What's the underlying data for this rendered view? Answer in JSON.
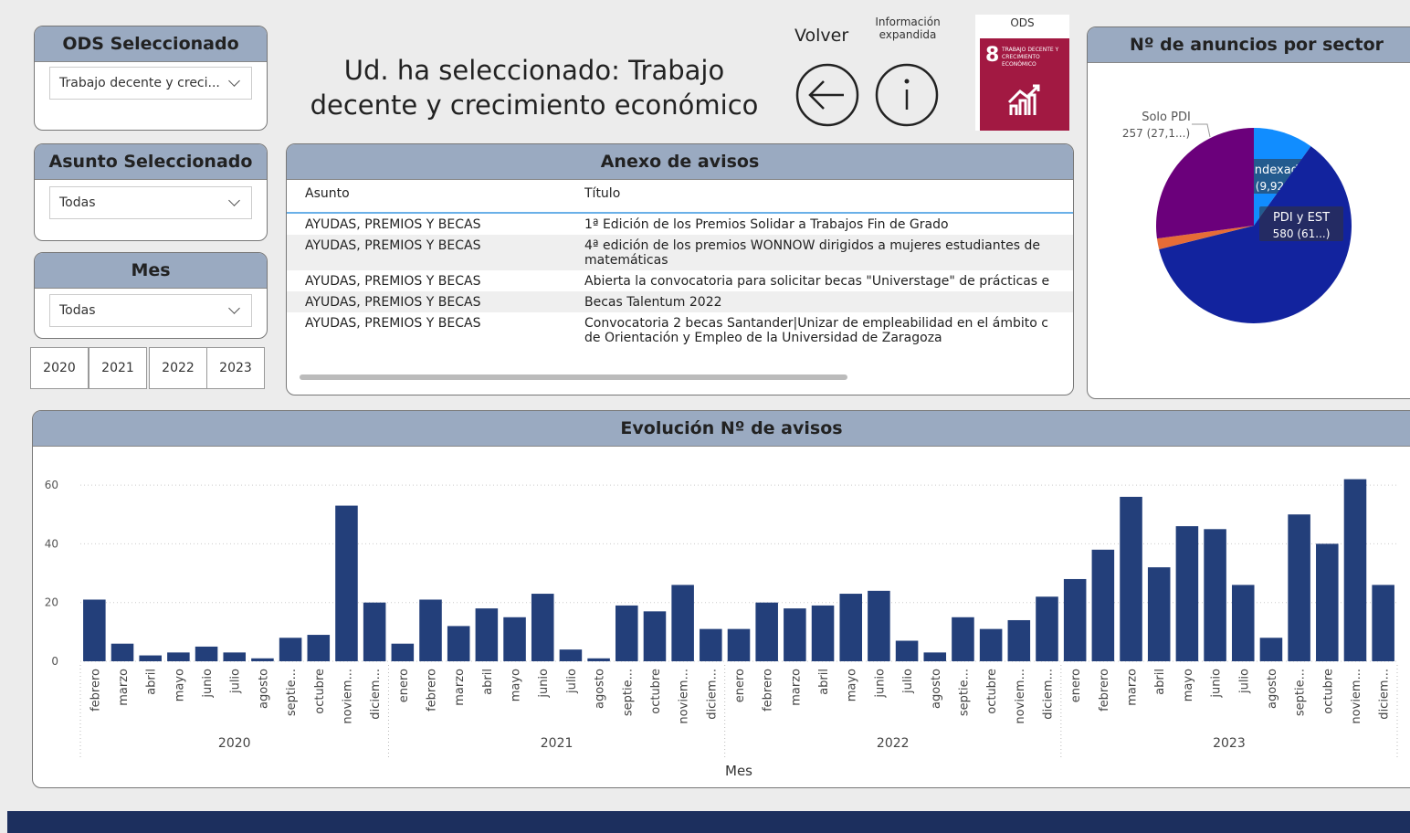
{
  "header": {
    "title": "Ud. ha seleccionado: Trabajo decente y crecimiento económico",
    "back": "Volver",
    "info": "Información expandida",
    "ods_label": "ODS",
    "ods_icon_number": "8",
    "ods_icon_text": "TRABAJO DECENTE Y CRECIMIENTO ECONÓMICO"
  },
  "slicers": [
    {
      "title": "ODS Seleccionado",
      "value": "Trabajo decente y creci..."
    },
    {
      "title": "Asunto Seleccionado",
      "value": "Todas"
    },
    {
      "title": "Mes",
      "value": "Todas"
    }
  ],
  "year_buttons": [
    "2020",
    "2021",
    "2022",
    "2023"
  ],
  "table": {
    "title": "Anexo de avisos",
    "columns": [
      "Asunto",
      "Título"
    ],
    "rows": [
      [
        "AYUDAS, PREMIOS Y BECAS",
        "1ª Edición de los Premios Solidar a Trabajos Fin de Grado"
      ],
      [
        "AYUDAS, PREMIOS Y BECAS",
        "4ª edición de los premios WONNOW dirigidos a mujeres estudiantes de matemáticas"
      ],
      [
        "AYUDAS, PREMIOS Y BECAS",
        "Abierta la convocatoria para solicitar becas \"Universtage\" de prácticas e"
      ],
      [
        "AYUDAS, PREMIOS Y BECAS",
        "Becas Talentum 2022"
      ],
      [
        "AYUDAS, PREMIOS Y BECAS",
        "Convocatoria 2 becas Santander|Unizar de empleabilidad en el ámbito c de Orientación y Empleo de la Universidad de Zaragoza"
      ]
    ]
  },
  "chart_data": [
    {
      "type": "bar",
      "title": "Evolución Nº de avisos",
      "x_label": "Mes",
      "color": "#233f7a",
      "categories": [
        "febrero",
        "marzo",
        "abril",
        "mayo",
        "junio",
        "julio",
        "agosto",
        "septie...",
        "octubre",
        "noviem...",
        "diciem...",
        "enero",
        "febrero",
        "marzo",
        "abril",
        "mayo",
        "junio",
        "julio",
        "agosto",
        "septie...",
        "octubre",
        "noviem...",
        "diciem...",
        "enero",
        "febrero",
        "marzo",
        "abril",
        "mayo",
        "junio",
        "julio",
        "agosto",
        "septie...",
        "octubre",
        "noviem...",
        "diciem...",
        "enero",
        "febrero",
        "marzo",
        "abril",
        "mayo",
        "junio",
        "julio",
        "agosto",
        "septie...",
        "octubre",
        "noviem...",
        "diciem..."
      ],
      "category_years": [
        "2020",
        "2020",
        "2020",
        "2020",
        "2020",
        "2020",
        "2020",
        "2020",
        "2020",
        "2020",
        "2020",
        "2021",
        "2021",
        "2021",
        "2021",
        "2021",
        "2021",
        "2021",
        "2021",
        "2021",
        "2021",
        "2021",
        "2021",
        "2022",
        "2022",
        "2022",
        "2022",
        "2022",
        "2022",
        "2022",
        "2022",
        "2022",
        "2022",
        "2022",
        "2022",
        "2023",
        "2023",
        "2023",
        "2023",
        "2023",
        "2023",
        "2023",
        "2023",
        "2023",
        "2023",
        "2023",
        "2023"
      ],
      "values": [
        21,
        6,
        2,
        3,
        5,
        3,
        1,
        8,
        9,
        53,
        20,
        6,
        21,
        12,
        18,
        15,
        23,
        4,
        1,
        19,
        17,
        26,
        11,
        11,
        20,
        18,
        19,
        23,
        24,
        7,
        3,
        15,
        11,
        14,
        22,
        28,
        38,
        56,
        32,
        46,
        45,
        26,
        8,
        50,
        40,
        62,
        26
      ],
      "ylim": [
        0,
        65
      ],
      "yticks": [
        0,
        20,
        40,
        60
      ],
      "grid": true
    },
    {
      "type": "pie",
      "title": "Nº de anuncios por sector",
      "categories": [
        "No Indexado",
        "PDI y EST",
        null,
        "Solo PDI"
      ],
      "values": [
        94,
        580,
        17,
        257
      ],
      "value_labels": [
        "94 (9,92%)",
        "580 (61...)",
        null,
        "257 (27,1...)"
      ],
      "colors": [
        "#118dff",
        "#12239e",
        "#e66c37",
        "#6b007b"
      ]
    }
  ]
}
